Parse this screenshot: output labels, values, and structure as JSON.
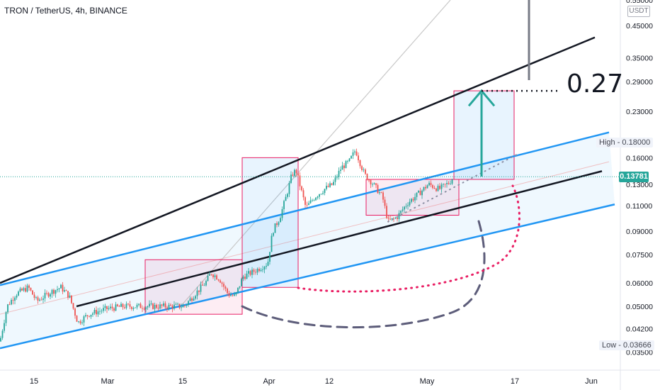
{
  "header": {
    "title": "TRON / TetherUS, 4h, BINANCE",
    "unit": "USDT"
  },
  "annotations": {
    "target": "0.27",
    "high_label": "High",
    "high_value": "0.18000",
    "low_label": "Low",
    "low_value": "0.03666",
    "current_price": "0.13781"
  },
  "colors": {
    "up": "#26a69a",
    "down": "#ef5350",
    "channel": "#2196f3",
    "trendline": "#131722",
    "box_pink": "#e91e63",
    "dashed_arc": "#5d5d7a",
    "dotted_arc": "#e91e63"
  },
  "chart_data": {
    "type": "candlestick",
    "title": "TRON / TetherUS, 4h, BINANCE",
    "y_scale": "log",
    "ylim": [
      0.034,
      0.56
    ],
    "y_ticks": [
      "0.55000",
      "0.45000",
      "0.35000",
      "0.29000",
      "0.23000",
      "0.18000",
      "0.16000",
      "0.13000",
      "0.11000",
      "0.09000",
      "0.07500",
      "0.06000",
      "0.05000",
      "0.04200",
      "0.03500"
    ],
    "x_ticks": [
      "15",
      "Mar",
      "15",
      "Apr",
      "12",
      "May",
      "17",
      "Jun"
    ],
    "price_path": [
      [
        0,
        0.038
      ],
      [
        10,
        0.05
      ],
      [
        22,
        0.055
      ],
      [
        40,
        0.058
      ],
      [
        52,
        0.052
      ],
      [
        62,
        0.054
      ],
      [
        72,
        0.056
      ],
      [
        86,
        0.058
      ],
      [
        98,
        0.054
      ],
      [
        110,
        0.044
      ],
      [
        125,
        0.047
      ],
      [
        150,
        0.049
      ],
      [
        175,
        0.05
      ],
      [
        200,
        0.05
      ],
      [
        230,
        0.05
      ],
      [
        260,
        0.05
      ],
      [
        275,
        0.055
      ],
      [
        290,
        0.06
      ],
      [
        298,
        0.065
      ],
      [
        310,
        0.062
      ],
      [
        322,
        0.055
      ],
      [
        332,
        0.054
      ],
      [
        343,
        0.063
      ],
      [
        360,
        0.066
      ],
      [
        378,
        0.07
      ],
      [
        385,
        0.09
      ],
      [
        395,
        0.1
      ],
      [
        405,
        0.12
      ],
      [
        412,
        0.14
      ],
      [
        418,
        0.145
      ],
      [
        425,
        0.125
      ],
      [
        432,
        0.108
      ],
      [
        445,
        0.118
      ],
      [
        458,
        0.125
      ],
      [
        470,
        0.13
      ],
      [
        482,
        0.148
      ],
      [
        493,
        0.155
      ],
      [
        502,
        0.17
      ],
      [
        510,
        0.15
      ],
      [
        515,
        0.14
      ],
      [
        525,
        0.132
      ],
      [
        540,
        0.118
      ],
      [
        548,
        0.097
      ],
      [
        560,
        0.1
      ],
      [
        575,
        0.112
      ],
      [
        590,
        0.12
      ],
      [
        605,
        0.13
      ],
      [
        620,
        0.125
      ],
      [
        635,
        0.132
      ],
      [
        640,
        0.1378
      ]
    ],
    "channel": {
      "upper": [
        [
          0,
          0.059
        ],
        [
          860,
          0.195
        ]
      ],
      "middle": [
        [
          0,
          0.047
        ],
        [
          860,
          0.155
        ]
      ],
      "lower": [
        [
          0,
          0.036
        ],
        [
          868,
          0.111
        ]
      ]
    },
    "trendlines": {
      "upper_black": [
        [
          0,
          0.06
        ],
        [
          840,
          0.41
        ]
      ],
      "mid_black": [
        [
          108,
          0.05
        ],
        [
          850,
          0.144
        ]
      ]
    },
    "boxes": [
      {
        "x0": 205,
        "x1": 342,
        "y0": 0.047,
        "y1": 0.072,
        "fill": "pink"
      },
      {
        "x0": 342,
        "x1": 421,
        "y0": 0.058,
        "y1": 0.16,
        "fill": "blue"
      },
      {
        "x0": 517,
        "x1": 648,
        "y0": 0.102,
        "y1": 0.135,
        "fill": "pink"
      },
      {
        "x0": 641,
        "x1": 726,
        "y0": 0.135,
        "y1": 0.27,
        "fill": "blue"
      }
    ],
    "target_value": 0.27,
    "high": 0.18,
    "low": 0.03666,
    "last": 0.13781,
    "legend": "none",
    "grid": false
  }
}
